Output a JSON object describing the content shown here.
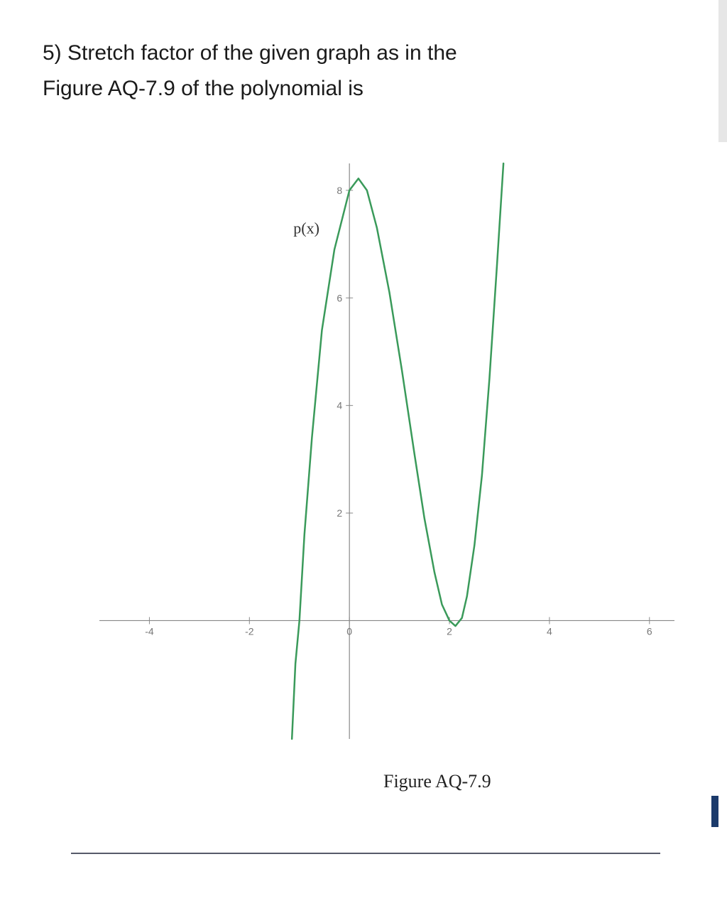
{
  "question": {
    "number": "5)",
    "line1": "Stretch factor of the given graph as in the",
    "line2": "Figure AQ-7.9 of the polynomial is"
  },
  "chart": {
    "type": "line",
    "function_label": "p(x)",
    "caption": "Figure AQ-7.9",
    "xlim": [
      -5,
      6.5
    ],
    "ylim": [
      -2.2,
      8.5
    ],
    "x_ticks": [
      -4,
      -2,
      0,
      2,
      4,
      6
    ],
    "x_tick_labels": [
      "-4",
      "-2",
      "0",
      "2",
      "4",
      "6"
    ],
    "y_ticks": [
      2,
      4,
      6,
      8
    ],
    "y_tick_labels": [
      "2",
      "4",
      "6",
      "8"
    ],
    "axis_color": "#888888",
    "tick_label_color": "#777777",
    "tick_label_fontsize": 14,
    "curve_color": "#3a9a5a",
    "curve_width": 2.5,
    "background_color": "#ffffff",
    "function_label_fontfamily": "Times New Roman, Times, serif",
    "function_label_fontsize": 22,
    "curve_points": [
      [
        -1.15,
        -2.2
      ],
      [
        -1.08,
        -0.8
      ],
      [
        -1.0,
        0.0
      ],
      [
        -0.9,
        1.6
      ],
      [
        -0.75,
        3.4
      ],
      [
        -0.55,
        5.4
      ],
      [
        -0.3,
        6.9
      ],
      [
        0.0,
        8.0
      ],
      [
        0.18,
        8.22
      ],
      [
        0.35,
        8.0
      ],
      [
        0.55,
        7.3
      ],
      [
        0.8,
        6.1
      ],
      [
        1.05,
        4.65
      ],
      [
        1.3,
        3.1
      ],
      [
        1.5,
        1.9
      ],
      [
        1.7,
        0.9
      ],
      [
        1.85,
        0.3
      ],
      [
        2.0,
        0.0
      ],
      [
        2.12,
        -0.1
      ],
      [
        2.25,
        0.05
      ],
      [
        2.35,
        0.45
      ],
      [
        2.5,
        1.4
      ],
      [
        2.65,
        2.7
      ],
      [
        2.8,
        4.5
      ],
      [
        2.95,
        6.6
      ],
      [
        3.08,
        8.5
      ]
    ]
  },
  "layout": {
    "svg_viewbox_w": 850,
    "svg_viewbox_h": 870
  }
}
